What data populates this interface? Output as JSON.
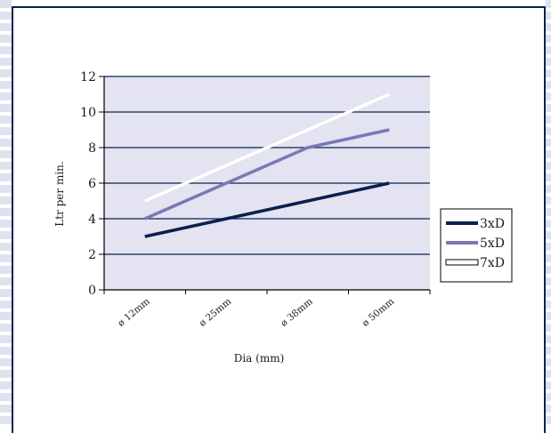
{
  "colors": {
    "frame": "#0b2150",
    "plot_bg": "#e3e3f1",
    "grid": "#0b2150",
    "edge_stripe_a": "#dde3ee",
    "edge_stripe_b": "#ffffff"
  },
  "chart_data": {
    "type": "line",
    "title": "",
    "xlabel": "Dia (mm)",
    "ylabel": "Ltr per min.",
    "categories": [
      "ø 12mm",
      "ø 25mm",
      "ø 38mm",
      "ø 50mm"
    ],
    "ylim": [
      0,
      12
    ],
    "yticks": [
      "0",
      "2",
      "4",
      "6",
      "8",
      "10",
      "12"
    ],
    "grid": true,
    "legend_position": "right",
    "series": [
      {
        "name": "3xD",
        "values": [
          3,
          4,
          5,
          6
        ],
        "color": "#0b1f4f"
      },
      {
        "name": "5xD",
        "values": [
          4,
          6,
          8,
          9
        ],
        "color": "#7b78b4"
      },
      {
        "name": "7xD",
        "values": [
          5,
          7,
          9,
          11
        ],
        "color": "#ffffff"
      }
    ]
  }
}
